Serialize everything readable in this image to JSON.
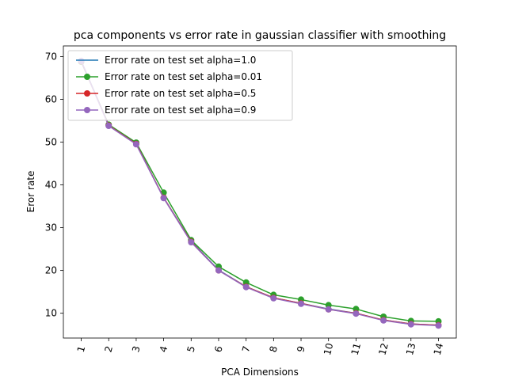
{
  "chart_data": {
    "type": "line",
    "title": "pca components vs error rate in gaussian classifier with smoothing",
    "xlabel": "PCA Dimensions",
    "ylabel": "Eror rate",
    "categories": [
      "1",
      "2",
      "3",
      "4",
      "5",
      "6",
      "7",
      "8",
      "9",
      "10",
      "11",
      "12",
      "13",
      "14"
    ],
    "x": [
      1,
      2,
      3,
      4,
      5,
      6,
      7,
      8,
      9,
      10,
      11,
      12,
      13,
      14
    ],
    "yticks": [
      10,
      20,
      30,
      40,
      50,
      60,
      70
    ],
    "ylim": [
      4.2,
      72.5
    ],
    "xlim": [
      0.35,
      14.65
    ],
    "grid": false,
    "legend_position": "top-left",
    "series": [
      {
        "name": "Error rate on test set alpha=1.0",
        "color": "#1f77b4",
        "marker": "none",
        "values": [
          69.0,
          54.0,
          49.6,
          37.0,
          26.8,
          20.1,
          16.2,
          13.6,
          12.3,
          11.0,
          10.0,
          8.4,
          7.5,
          7.2
        ]
      },
      {
        "name": "Error rate on test set alpha=0.01",
        "color": "#2ca02c",
        "marker": "circle",
        "values": [
          68.8,
          54.1,
          49.9,
          38.2,
          27.1,
          20.9,
          17.2,
          14.3,
          13.2,
          11.9,
          11.0,
          9.2,
          8.2,
          8.1
        ]
      },
      {
        "name": "Error rate on test set alpha=0.5",
        "color": "#d62728",
        "marker": "circle",
        "values": [
          68.9,
          53.9,
          49.6,
          37.0,
          26.7,
          20.0,
          16.2,
          13.6,
          12.3,
          10.9,
          10.0,
          8.4,
          7.5,
          7.2
        ]
      },
      {
        "name": "Error rate on test set alpha=0.9",
        "color": "#9467bd",
        "marker": "circle",
        "values": [
          69.0,
          53.8,
          49.5,
          36.9,
          26.6,
          20.0,
          16.1,
          13.5,
          12.2,
          10.9,
          9.9,
          8.3,
          7.4,
          7.1
        ]
      }
    ]
  }
}
